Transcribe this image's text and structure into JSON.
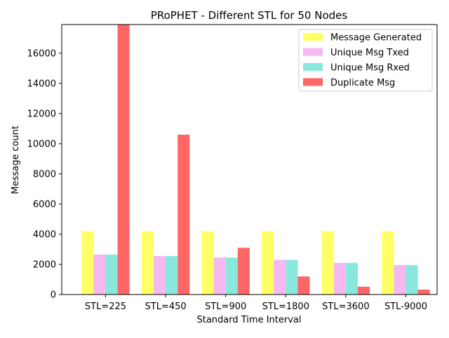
{
  "chart_data": {
    "type": "bar",
    "title": "PRoPHET - Different STL for 50 Nodes",
    "xlabel": "Standard Time Interval",
    "ylabel": "Message count",
    "categories": [
      "STL=225",
      "STL=450",
      "STL=900",
      "STL=1800",
      "STL=3600",
      "STL-9000"
    ],
    "ylim": [
      0,
      17900
    ],
    "yticks": [
      0,
      2000,
      4000,
      6000,
      8000,
      10000,
      12000,
      14000,
      16000
    ],
    "grid": false,
    "legend_position": "top-right",
    "series": [
      {
        "name": "Message Generated",
        "color": "#ffff66",
        "values": [
          4200,
          4200,
          4200,
          4200,
          4200,
          4200
        ]
      },
      {
        "name": "Unique Msg Txed",
        "color": "#f5b8f0",
        "values": [
          2650,
          2550,
          2450,
          2300,
          2100,
          1950
        ]
      },
      {
        "name": "Unique Msg Rxed",
        "color": "#88e8dc",
        "values": [
          2650,
          2550,
          2450,
          2300,
          2100,
          1950
        ]
      },
      {
        "name": "Duplicate Msg",
        "color": "#ff6666",
        "values": [
          17900,
          10600,
          3100,
          1200,
          520,
          330
        ]
      }
    ]
  }
}
